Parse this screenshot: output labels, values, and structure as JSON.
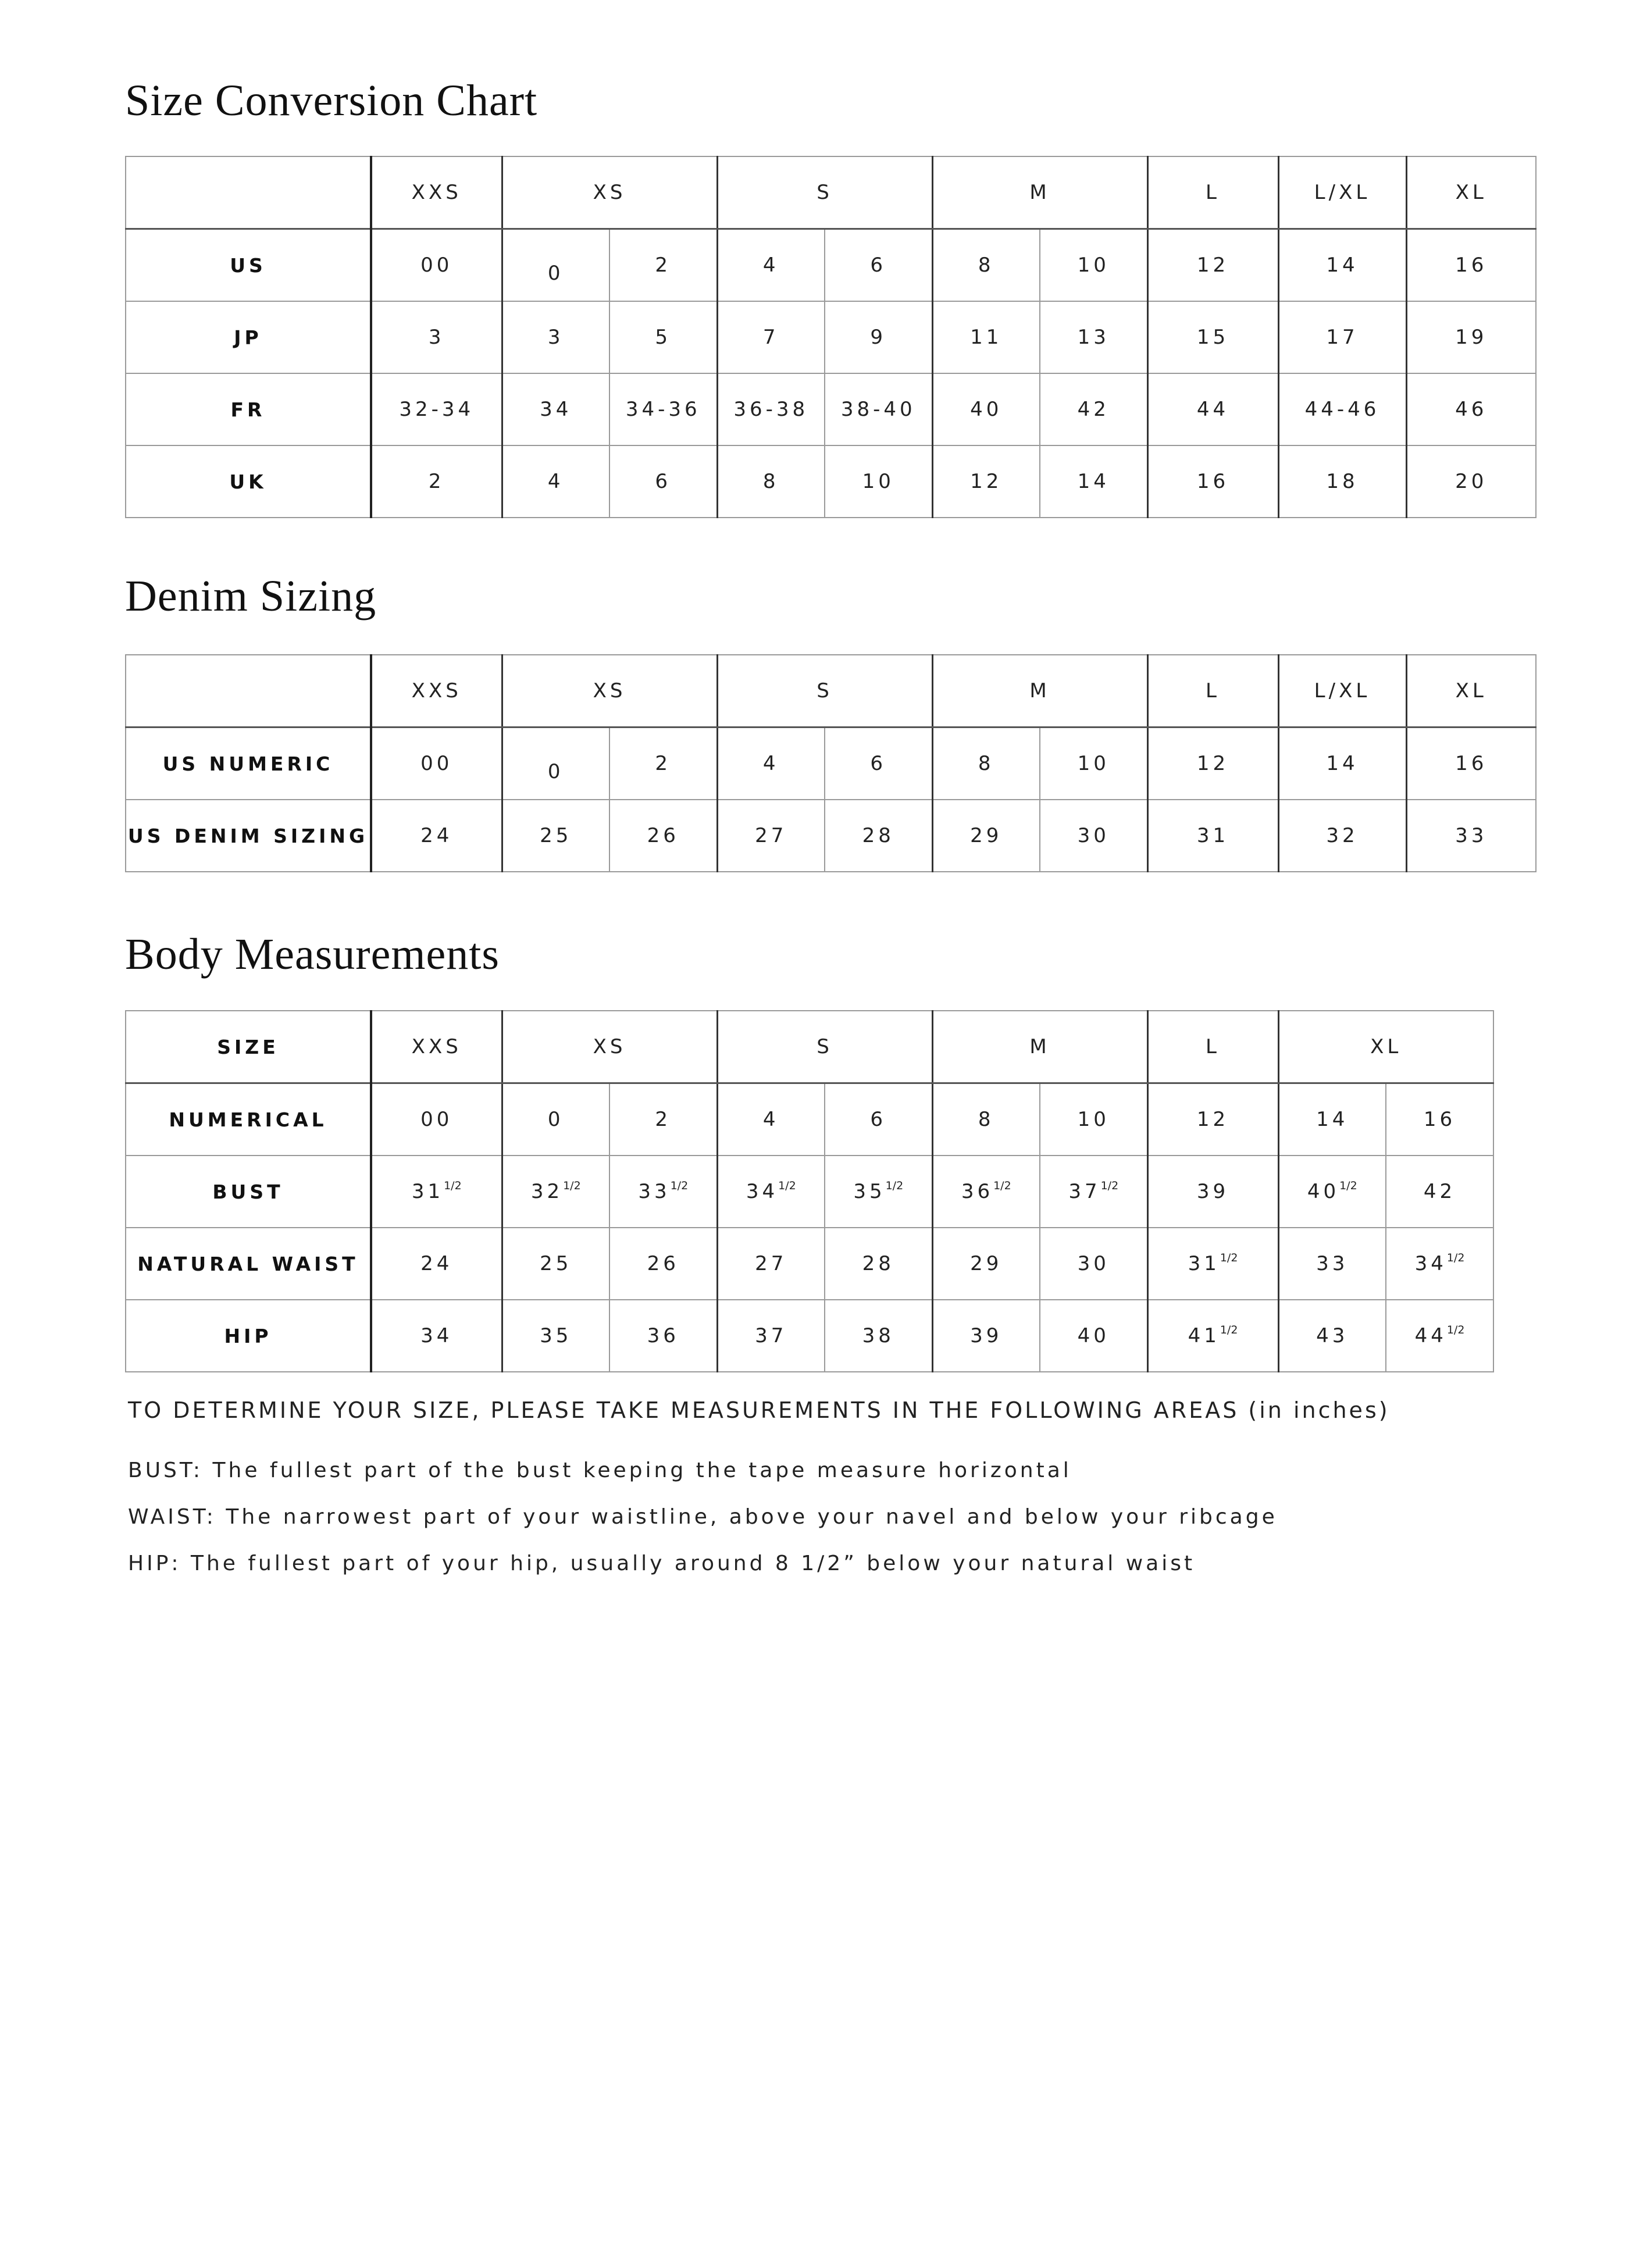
{
  "sections": [
    {
      "title": "Size Conversion Chart",
      "header": {
        "label": "",
        "cells": [
          {
            "v": "XXS",
            "span": 1
          },
          {
            "v": "XS",
            "span": 2
          },
          {
            "v": "S",
            "span": 2
          },
          {
            "v": "M",
            "span": 2
          },
          {
            "v": "L",
            "span": 1
          },
          {
            "v": "L/XL",
            "span": 1
          },
          {
            "v": "XL",
            "span": 1
          }
        ]
      },
      "rows": [
        {
          "label": "US",
          "cells": [
            {
              "v": "00"
            },
            {
              "v": "0",
              "drop": true
            },
            {
              "v": "2"
            },
            {
              "v": "4"
            },
            {
              "v": "6"
            },
            {
              "v": "8"
            },
            {
              "v": "10"
            },
            {
              "v": "12"
            },
            {
              "v": "14"
            },
            {
              "v": "16"
            }
          ]
        },
        {
          "label": "JP",
          "cells": [
            {
              "v": "3"
            },
            {
              "v": "3"
            },
            {
              "v": "5"
            },
            {
              "v": "7"
            },
            {
              "v": "9"
            },
            {
              "v": "11"
            },
            {
              "v": "13"
            },
            {
              "v": "15"
            },
            {
              "v": "17"
            },
            {
              "v": "19"
            }
          ]
        },
        {
          "label": "FR",
          "cells": [
            {
              "v": "32-34"
            },
            {
              "v": "34"
            },
            {
              "v": "34-36"
            },
            {
              "v": "36-38"
            },
            {
              "v": "38-40"
            },
            {
              "v": "40"
            },
            {
              "v": "42"
            },
            {
              "v": "44"
            },
            {
              "v": "44-46"
            },
            {
              "v": "46"
            }
          ]
        },
        {
          "label": "UK",
          "cells": [
            {
              "v": "2"
            },
            {
              "v": "4"
            },
            {
              "v": "6"
            },
            {
              "v": "8"
            },
            {
              "v": "10"
            },
            {
              "v": "12"
            },
            {
              "v": "14"
            },
            {
              "v": "16"
            },
            {
              "v": "18"
            },
            {
              "v": "20"
            }
          ]
        }
      ]
    },
    {
      "title": "Denim Sizing",
      "header": {
        "label": "",
        "cells": [
          {
            "v": "XXS",
            "span": 1
          },
          {
            "v": "XS",
            "span": 2
          },
          {
            "v": "S",
            "span": 2
          },
          {
            "v": "M",
            "span": 2
          },
          {
            "v": "L",
            "span": 1
          },
          {
            "v": "L/XL",
            "span": 1
          },
          {
            "v": "XL",
            "span": 1
          }
        ]
      },
      "rows": [
        {
          "label": "US NUMERIC",
          "cells": [
            {
              "v": "00"
            },
            {
              "v": "0",
              "drop": true
            },
            {
              "v": "2"
            },
            {
              "v": "4"
            },
            {
              "v": "6"
            },
            {
              "v": "8"
            },
            {
              "v": "10"
            },
            {
              "v": "12"
            },
            {
              "v": "14"
            },
            {
              "v": "16"
            }
          ]
        },
        {
          "label": "US DENIM SIZING",
          "cells": [
            {
              "v": "24"
            },
            {
              "v": "25"
            },
            {
              "v": "26"
            },
            {
              "v": "27"
            },
            {
              "v": "28"
            },
            {
              "v": "29"
            },
            {
              "v": "30"
            },
            {
              "v": "31"
            },
            {
              "v": "32"
            },
            {
              "v": "33"
            }
          ]
        }
      ]
    },
    {
      "title": "Body Measurements",
      "header": {
        "label": "SIZE",
        "cells": [
          {
            "v": "XXS",
            "span": 1
          },
          {
            "v": "XS",
            "span": 2
          },
          {
            "v": "S",
            "span": 2
          },
          {
            "v": "M",
            "span": 2
          },
          {
            "v": "L",
            "span": 1
          },
          {
            "v": "XL",
            "span": 2
          }
        ]
      },
      "rows": [
        {
          "label": "NUMERICAL",
          "cells": [
            {
              "v": "00"
            },
            {
              "v": "0"
            },
            {
              "v": "2"
            },
            {
              "v": "4"
            },
            {
              "v": "6"
            },
            {
              "v": "8"
            },
            {
              "v": "10"
            },
            {
              "v": "12"
            },
            {
              "v": "14"
            },
            {
              "v": "16"
            }
          ]
        },
        {
          "label": "BUST",
          "cells": [
            {
              "v": "31",
              "sup": "1/2"
            },
            {
              "v": "32",
              "sup": "1/2"
            },
            {
              "v": "33",
              "sup": "1/2"
            },
            {
              "v": "34",
              "sup": "1/2"
            },
            {
              "v": "35",
              "sup": "1/2"
            },
            {
              "v": "36",
              "sup": "1/2"
            },
            {
              "v": "37",
              "sup": "1/2"
            },
            {
              "v": "39"
            },
            {
              "v": "40",
              "sup": "1/2"
            },
            {
              "v": "42"
            }
          ]
        },
        {
          "label": "NATURAL WAIST",
          "cells": [
            {
              "v": "24"
            },
            {
              "v": "25"
            },
            {
              "v": "26"
            },
            {
              "v": "27"
            },
            {
              "v": "28"
            },
            {
              "v": "29"
            },
            {
              "v": "30"
            },
            {
              "v": "31",
              "sup": "1/2"
            },
            {
              "v": "33"
            },
            {
              "v": "34",
              "sup": "1/2"
            }
          ]
        },
        {
          "label": "HIP",
          "cells": [
            {
              "v": "34"
            },
            {
              "v": "35"
            },
            {
              "v": "36"
            },
            {
              "v": "37"
            },
            {
              "v": "38"
            },
            {
              "v": "39"
            },
            {
              "v": "40"
            },
            {
              "v": "41",
              "sup": "1/2"
            },
            {
              "v": "43"
            },
            {
              "v": "44",
              "sup": "1/2"
            }
          ]
        }
      ]
    }
  ],
  "notes": {
    "lead": "TO DETERMINE YOUR SIZE, PLEASE TAKE MEASUREMENTS IN THE FOLLOWING AREAS (in inches)",
    "bust": "BUST: The fullest part of the bust keeping the tape measure horizontal",
    "waist": "WAIST: The narrowest part of your waistline, above your navel and below your ribcage",
    "hip": "HIP: The fullest part of your hip, usually around 8 1/2” below your natural waist"
  }
}
